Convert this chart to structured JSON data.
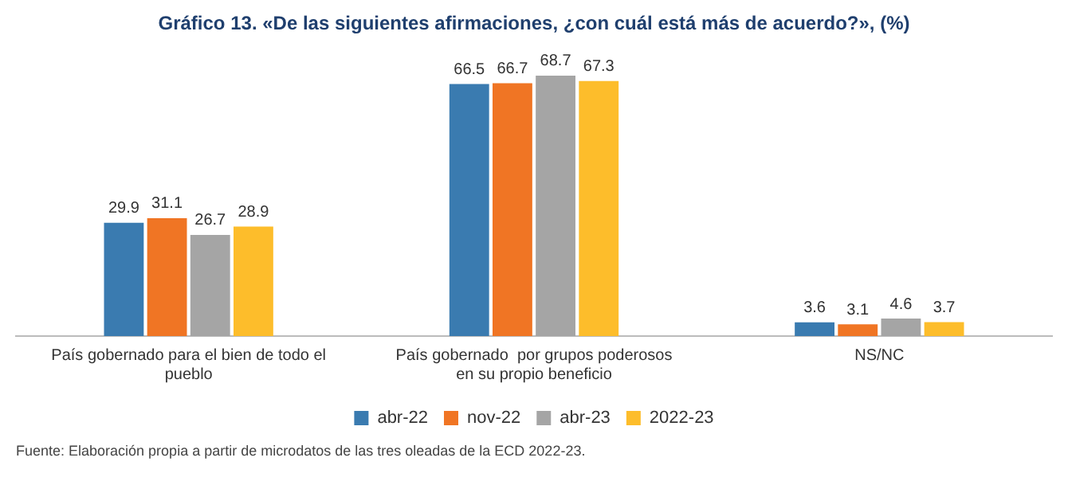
{
  "chart_data": {
    "type": "bar",
    "title": "Gráfico 13. «De las siguientes afirmaciones, ¿con cuál está más de acuerdo?», (%)",
    "categories": [
      "País gobernado para el bien de todo el pueblo",
      "País gobernado  por grupos poderosos en su propio beneficio",
      "NS/NC"
    ],
    "series": [
      {
        "name": "abr-22",
        "color": "#3a7bb0",
        "values": [
          29.9,
          66.5,
          3.6
        ]
      },
      {
        "name": "nov-22",
        "color": "#f07524",
        "values": [
          31.1,
          66.7,
          3.1
        ]
      },
      {
        "name": "abr-23",
        "color": "#a5a5a5",
        "values": [
          26.7,
          68.7,
          4.6
        ]
      },
      {
        "name": "2022-23",
        "color": "#fdbd2b",
        "values": [
          28.9,
          67.3,
          3.7
        ]
      }
    ],
    "data_labels": true,
    "grid": false,
    "legend": "bottom",
    "annotations": [
      "Fuente: Elaboración propia a partir de microdatos de las tres oleadas de la ECD 2022-23."
    ]
  }
}
